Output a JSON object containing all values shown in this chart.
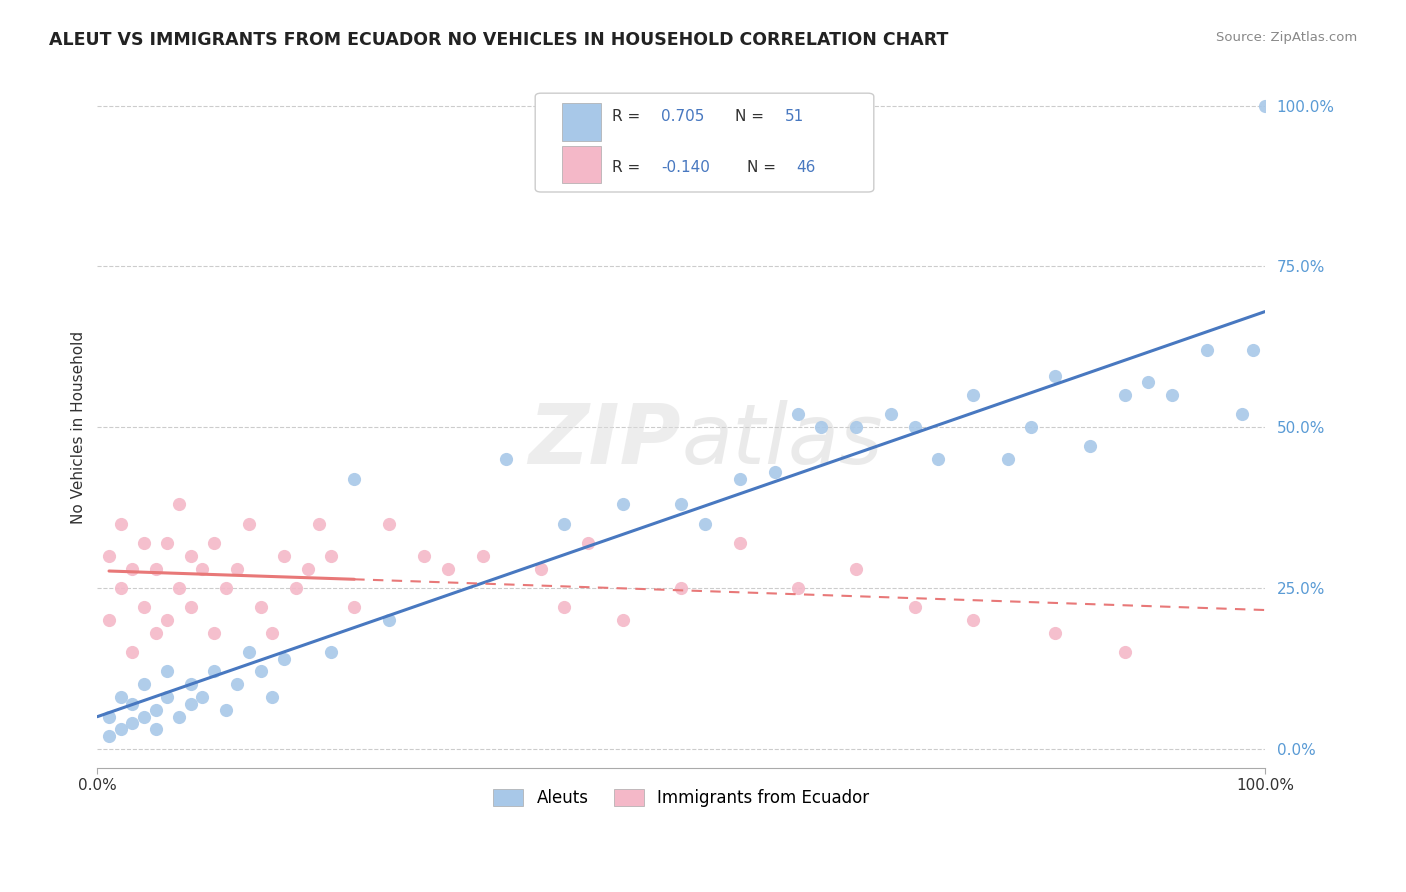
{
  "title": "ALEUT VS IMMIGRANTS FROM ECUADOR NO VEHICLES IN HOUSEHOLD CORRELATION CHART",
  "source_text": "Source: ZipAtlas.com",
  "ylabel": "No Vehicles in Household",
  "xlim": [
    0,
    100
  ],
  "ylim": [
    -3,
    103
  ],
  "ytick_values": [
    0,
    25,
    50,
    75,
    100
  ],
  "legend_label1": "Aleuts",
  "legend_label2": "Immigrants from Ecuador",
  "R1": 0.705,
  "N1": 51,
  "R2": -0.14,
  "N2": 46,
  "color_blue": "#a8c8e8",
  "color_pink": "#f4b8c8",
  "line_blue": "#4878c0",
  "line_pink": "#e87878",
  "background_color": "#ffffff",
  "aleuts_x": [
    1,
    1,
    2,
    2,
    3,
    3,
    4,
    4,
    5,
    5,
    6,
    6,
    7,
    8,
    8,
    9,
    10,
    11,
    12,
    13,
    14,
    15,
    16,
    20,
    22,
    25,
    35,
    40,
    45,
    50,
    52,
    55,
    58,
    60,
    62,
    65,
    68,
    70,
    72,
    75,
    78,
    80,
    82,
    85,
    88,
    90,
    92,
    95,
    98,
    99,
    100
  ],
  "aleuts_y": [
    2,
    5,
    3,
    8,
    4,
    7,
    5,
    10,
    6,
    3,
    8,
    12,
    5,
    7,
    10,
    8,
    12,
    6,
    10,
    15,
    12,
    8,
    14,
    15,
    42,
    20,
    45,
    35,
    38,
    38,
    35,
    42,
    43,
    52,
    50,
    50,
    52,
    50,
    45,
    55,
    45,
    50,
    58,
    47,
    55,
    57,
    55,
    62,
    52,
    62,
    100
  ],
  "ecuador_x": [
    1,
    1,
    2,
    2,
    3,
    3,
    4,
    4,
    5,
    5,
    6,
    6,
    7,
    7,
    8,
    8,
    9,
    10,
    10,
    11,
    12,
    13,
    14,
    15,
    16,
    17,
    18,
    19,
    20,
    22,
    25,
    28,
    30,
    33,
    38,
    40,
    42,
    45,
    50,
    55,
    60,
    65,
    70,
    75,
    82,
    88
  ],
  "ecuador_y": [
    20,
    30,
    25,
    35,
    15,
    28,
    22,
    32,
    18,
    28,
    20,
    32,
    25,
    38,
    22,
    30,
    28,
    18,
    32,
    25,
    28,
    35,
    22,
    18,
    30,
    25,
    28,
    35,
    30,
    22,
    35,
    30,
    28,
    30,
    28,
    22,
    32,
    20,
    25,
    32,
    25,
    28,
    22,
    20,
    18,
    15
  ]
}
